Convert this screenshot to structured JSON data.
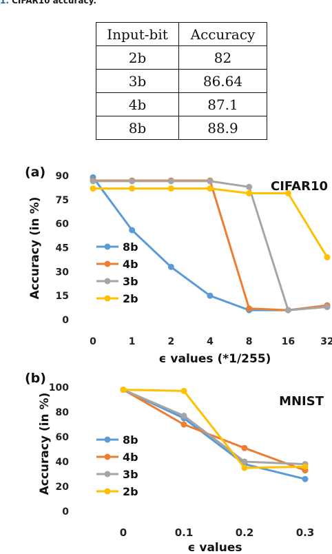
{
  "caption": {
    "number": "1.",
    "text": "CIFAR10 accuracy."
  },
  "table": {
    "headers": [
      "Input-bit",
      "Accuracy"
    ],
    "rows": [
      [
        "2b",
        "82"
      ],
      [
        "3b",
        "86.64"
      ],
      [
        "4b",
        "87.1"
      ],
      [
        "8b",
        "88.9"
      ]
    ]
  },
  "chart_data": [
    {
      "type": "line",
      "panel_label": "(a)",
      "title": "CIFAR10",
      "xlabel": "ϵ values (*1/255)",
      "ylabel": "Accuracy (in %)",
      "categories": [
        "0",
        "1",
        "2",
        "4",
        "8",
        "16",
        "32"
      ],
      "yticks": [
        0,
        15,
        30,
        45,
        60,
        75,
        90
      ],
      "ylim": [
        0,
        90
      ],
      "legend_position": "bottom-left",
      "series": [
        {
          "name": "8b",
          "color": "#5b9bd5",
          "values": [
            89,
            56,
            33,
            15,
            6,
            6,
            8
          ]
        },
        {
          "name": "4b",
          "color": "#ed7d31",
          "values": [
            87,
            87,
            87,
            87,
            7,
            6,
            9
          ]
        },
        {
          "name": "3b",
          "color": "#a5a5a5",
          "values": [
            86.6,
            86.6,
            86.6,
            86.6,
            83,
            6,
            8
          ]
        },
        {
          "name": "2b",
          "color": "#ffc000",
          "values": [
            82,
            82,
            82,
            82,
            79,
            79,
            39
          ]
        }
      ]
    },
    {
      "type": "line",
      "panel_label": "(b)",
      "title": "MNIST",
      "xlabel": "ϵ values",
      "ylabel": "Accuracy (in %)",
      "categories": [
        "0",
        "0.1",
        "0.2",
        "0.3"
      ],
      "yticks": [
        0,
        20,
        40,
        60,
        80,
        100
      ],
      "ylim": [
        0,
        100
      ],
      "legend_position": "bottom-left",
      "series": [
        {
          "name": "8b",
          "color": "#5b9bd5",
          "values": [
            98,
            75,
            38,
            26
          ]
        },
        {
          "name": "4b",
          "color": "#ed7d31",
          "values": [
            98,
            70,
            51,
            33
          ]
        },
        {
          "name": "3b",
          "color": "#a5a5a5",
          "values": [
            98,
            77,
            40,
            38
          ]
        },
        {
          "name": "2b",
          "color": "#ffc000",
          "values": [
            98,
            97,
            35,
            36
          ]
        }
      ]
    }
  ]
}
